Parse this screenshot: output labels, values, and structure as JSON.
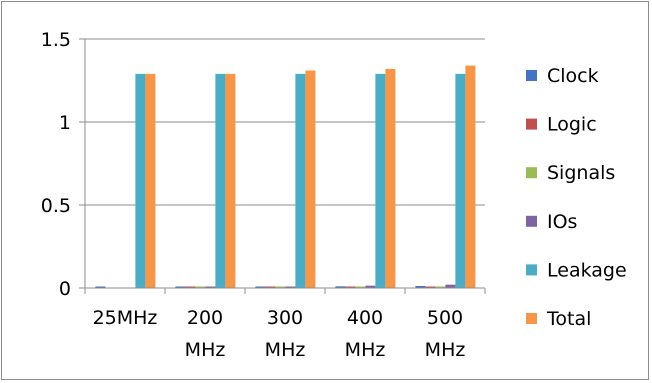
{
  "chart_data": {
    "type": "bar",
    "title": "",
    "xlabel": "",
    "ylabel": "",
    "categories": [
      "25MHz",
      "200 MHz",
      "300 MHz",
      "400 MHz",
      "500 MHz"
    ],
    "category_lines": [
      [
        "25MHz"
      ],
      [
        "200",
        "MHz"
      ],
      [
        "300",
        "MHz"
      ],
      [
        "400",
        "MHz"
      ],
      [
        "500",
        "MHz"
      ]
    ],
    "ylim": [
      0,
      1.5
    ],
    "yticks": [
      0,
      0.5,
      1,
      1.5
    ],
    "ytick_labels": [
      "0",
      "0.5",
      "1",
      "1.5"
    ],
    "grid": true,
    "legend_position": "right",
    "series": [
      {
        "name": "Clock",
        "color": "#4472C4",
        "values": [
          0.005,
          0.007,
          0.008,
          0.01,
          0.012
        ]
      },
      {
        "name": "Logic",
        "color": "#C0504D",
        "values": [
          0.0,
          0.001,
          0.002,
          0.002,
          0.003
        ]
      },
      {
        "name": "Signals",
        "color": "#9BBB59",
        "values": [
          0.0,
          0.001,
          0.002,
          0.002,
          0.003
        ]
      },
      {
        "name": "IOs",
        "color": "#8064A2",
        "values": [
          0.0,
          0.003,
          0.008,
          0.014,
          0.02
        ]
      },
      {
        "name": "Leakage",
        "color": "#4BACC6",
        "values": [
          1.29,
          1.29,
          1.29,
          1.29,
          1.29
        ]
      },
      {
        "name": "Total",
        "color": "#F79646",
        "values": [
          1.29,
          1.29,
          1.31,
          1.32,
          1.34
        ]
      }
    ]
  }
}
